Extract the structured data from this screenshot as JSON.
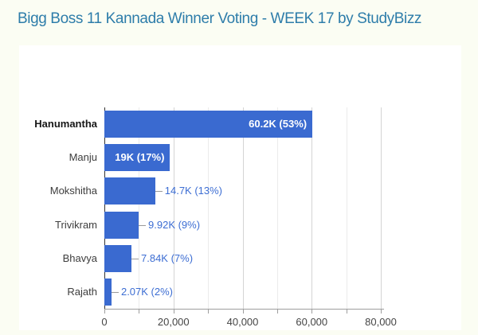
{
  "page_title": "Bigg Boss 11 Kannada Winner Voting - WEEK 17 by StudyBizz",
  "colors": {
    "title_text": "#2e7daa",
    "page_bg": "#fbfdf3",
    "card_bg": "#ffffff",
    "bar": "#3a6ad0",
    "annotation_inside": "#ffffff",
    "annotation_outside": "#3d6ed3",
    "stem": "#999999",
    "gridline_major": "#d4d4d4",
    "gridline_minor": "#ebebeb",
    "baseline": "#333333",
    "axis_line": "#9e9e9e",
    "axis_label": "#454545",
    "category_label": "#3d3d3d",
    "category_label_bold": "#171717"
  },
  "chart_data": {
    "type": "bar",
    "orientation": "horizontal",
    "title": "Bigg Boss 11 Kannada Winner Voting - WEEK 17 by StudyBizz",
    "categories": [
      "Hanumantha",
      "Manju",
      "Mokshitha",
      "Trivikram",
      "Bhavya",
      "Rajath"
    ],
    "values": [
      60200,
      19000,
      14700,
      9920,
      7840,
      2070
    ],
    "percentages": [
      53,
      17,
      13,
      9,
      7,
      2
    ],
    "value_labels": [
      "60.2K (53%)",
      "19K (17%)",
      "14.7K (13%)",
      "9.92K (9%)",
      "7.84K (7%)",
      "2.07K (2%)"
    ],
    "label_inside": [
      true,
      true,
      false,
      false,
      false,
      false
    ],
    "bold_category": [
      true,
      false,
      false,
      false,
      false,
      false
    ],
    "xlabel": "",
    "ylabel": "",
    "xlim": [
      0,
      80000
    ],
    "x_minor_step": 10000,
    "x_major_ticks": [
      0,
      20000,
      40000,
      60000,
      80000
    ],
    "x_tick_labels": [
      "0",
      "20,000",
      "40,000",
      "60,000",
      "80,000"
    ],
    "grid": true,
    "legend": "none"
  }
}
